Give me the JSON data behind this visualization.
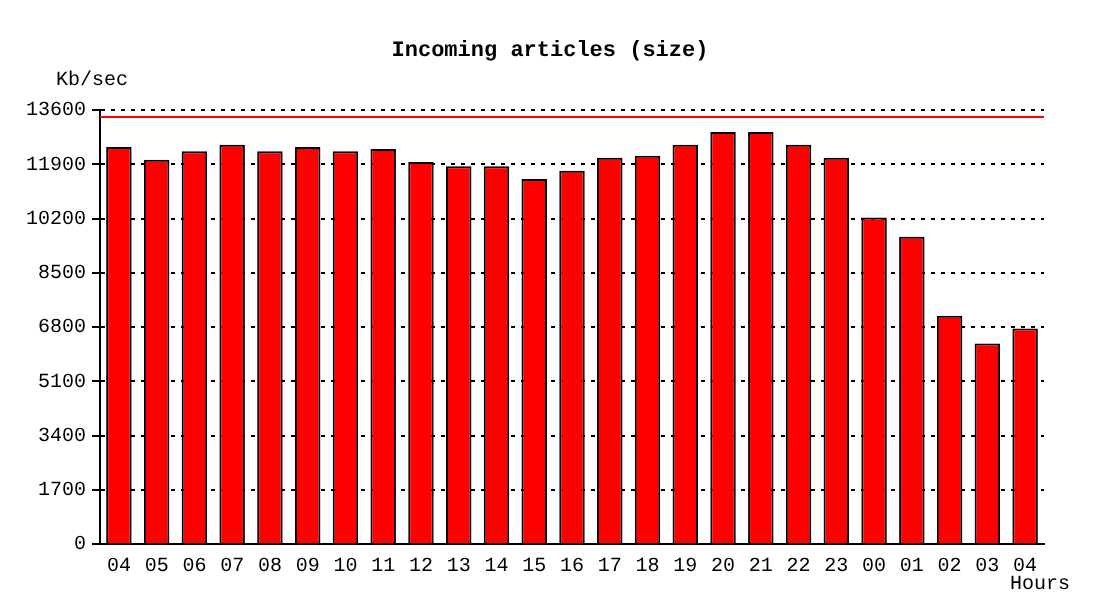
{
  "chart_data": {
    "type": "bar",
    "title": "Incoming articles (size)",
    "ylabel": "Kb/sec",
    "xlabel": "Hours",
    "categories": [
      "04",
      "05",
      "06",
      "07",
      "08",
      "09",
      "10",
      "11",
      "12",
      "13",
      "14",
      "15",
      "16",
      "17",
      "18",
      "19",
      "20",
      "21",
      "22",
      "23",
      "00",
      "01",
      "02",
      "03",
      "04"
    ],
    "values": [
      12440,
      12040,
      12310,
      12510,
      12310,
      12440,
      12310,
      12380,
      11970,
      11840,
      11840,
      11440,
      11700,
      12100,
      12170,
      12510,
      12910,
      12910,
      12510,
      12100,
      10230,
      9630,
      7150,
      6280,
      6750
    ],
    "color": "#ff0000",
    "ylim": [
      0,
      13600
    ],
    "yticks": [
      0,
      1700,
      3400,
      5100,
      6800,
      8500,
      10200,
      11900,
      13600
    ],
    "grid": "y",
    "ref_lines": [
      {
        "axis": "y",
        "value": 13380,
        "color": "#ff0000"
      }
    ]
  }
}
